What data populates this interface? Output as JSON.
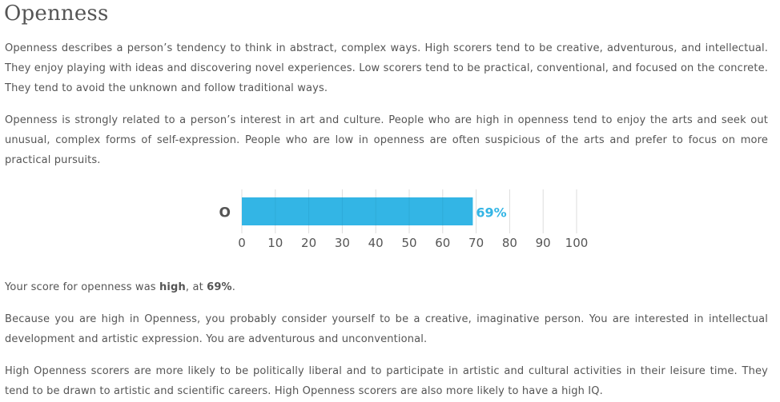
{
  "heading": "Openness",
  "paragraphs": {
    "p1": "Openness describes a person’s tendency to think in abstract, complex ways. High scorers tend to be creative, adventurous, and intellectual. They enjoy playing with ideas and discovering novel experiences. Low scorers tend to be practical, conventional, and focused on the concrete. They tend to avoid the unknown and follow traditional ways.",
    "p2": "Openness is strongly related to a person’s interest in art and culture. People who are high in openness tend to enjoy the arts and seek out unusual, complex forms of self-expression. People who are low in openness are often suspicious of the arts and prefer to focus on more practical pursuits.",
    "p4": "Because you are high in Openness, you probably consider yourself to be a creative, imaginative person. You are interested in intellectual development and artistic expression. You are adventurous and unconventional.",
    "p5": "High Openness scorers are more likely to be politically liberal and to participate in artistic and cultural activities in their leisure time. They tend to be drawn to artistic and scientific careers. High Openness scorers are also more likely to have a high IQ."
  },
  "score_sentence": {
    "prefix": "Your score for openness was ",
    "level": "high",
    "middle": ", at ",
    "percent": "69%",
    "suffix": "."
  },
  "chart_data": {
    "type": "bar",
    "orientation": "horizontal",
    "categories": [
      "O"
    ],
    "values": [
      69
    ],
    "value_labels": [
      "69%"
    ],
    "xlim": [
      0,
      100
    ],
    "xticks": [
      0,
      10,
      20,
      30,
      40,
      50,
      60,
      70,
      80,
      90,
      100
    ],
    "xtick_labels": [
      "0",
      "10",
      "20",
      "30",
      "40",
      "50",
      "60",
      "70",
      "80",
      "90",
      "100"
    ],
    "grid": true,
    "bar_color": "#33b5e5",
    "label_color": "#33b5e5",
    "grid_color": "#dddddd"
  }
}
